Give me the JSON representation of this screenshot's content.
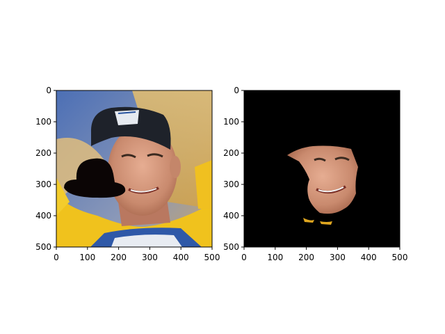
{
  "panels": [
    {
      "name": "original-with-occlusion",
      "x_ticks": [
        "0",
        "100",
        "200",
        "300",
        "400",
        "500"
      ],
      "y_ticks": [
        "0",
        "100",
        "200",
        "300",
        "400",
        "500"
      ],
      "xlim": [
        0,
        500
      ],
      "ylim": [
        0,
        500
      ]
    },
    {
      "name": "segmented-face",
      "x_ticks": [
        "0",
        "100",
        "200",
        "300",
        "400",
        "500"
      ],
      "y_ticks": [
        "0",
        "100",
        "200",
        "300",
        "400",
        "500"
      ],
      "xlim": [
        0,
        500
      ],
      "ylim": [
        0,
        500
      ]
    }
  ],
  "colors": {
    "sky": "#5a79b8",
    "jersey": "#f2c21a",
    "skin": "#d79a80",
    "cap": "#1c2027",
    "mask_black": "#000000",
    "occluder": "#0b0505"
  }
}
